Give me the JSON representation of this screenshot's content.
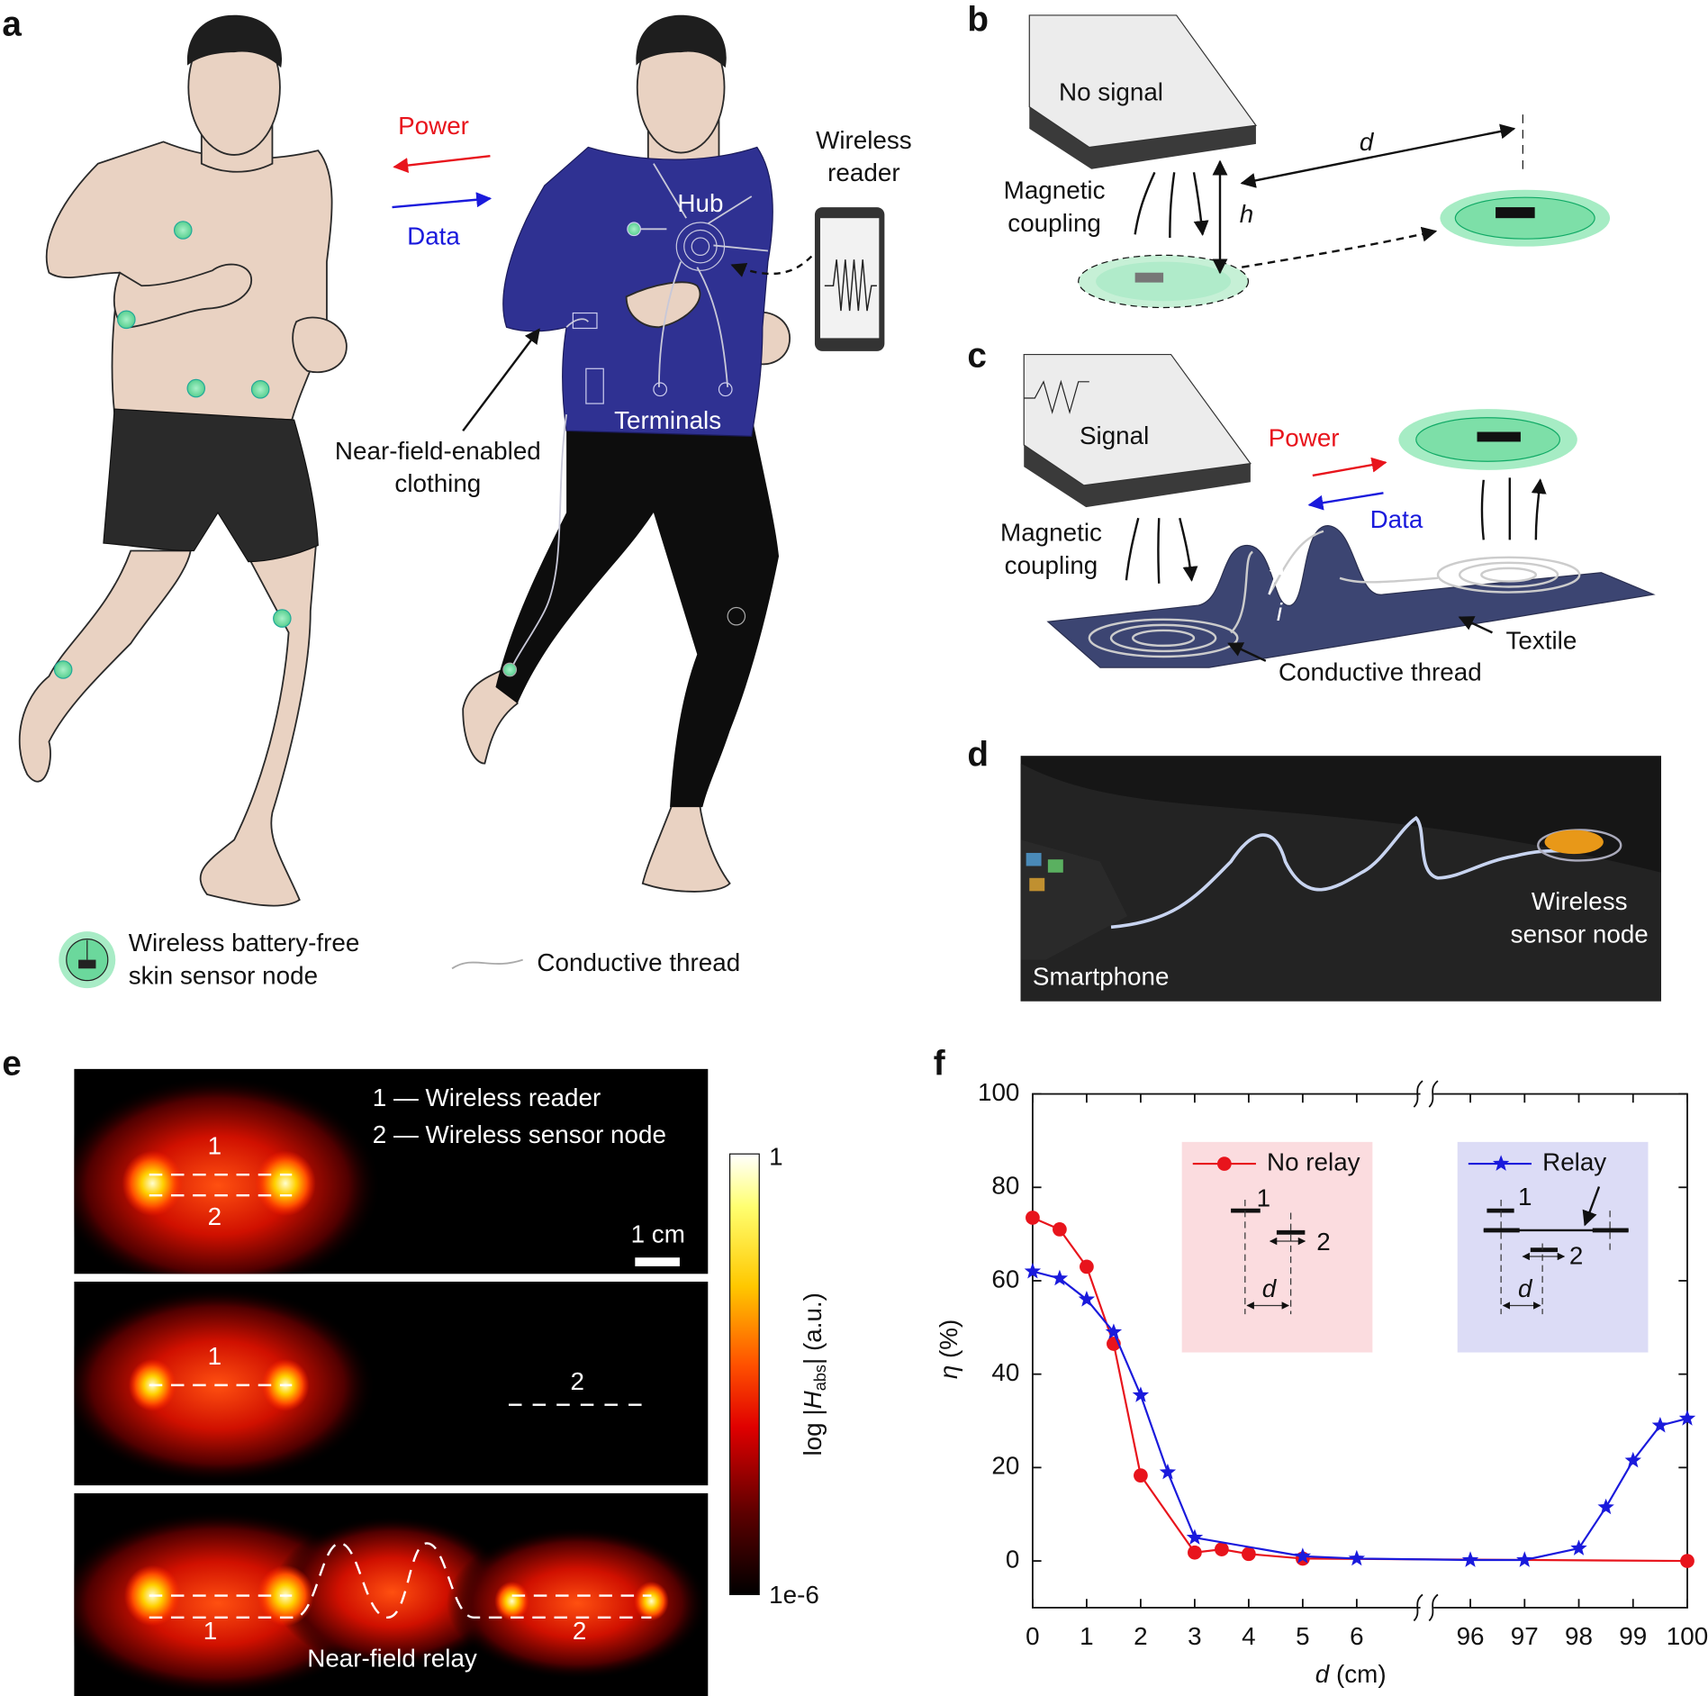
{
  "panels": {
    "a": {
      "label": "a",
      "power": "Power",
      "data": "Data",
      "reader": [
        "Wireless",
        "reader"
      ],
      "hub": "Hub",
      "terminals": "Terminals",
      "clothing": [
        "Near-field-enabled",
        "clothing"
      ],
      "legend_node": [
        "Wireless battery-free",
        "skin sensor node"
      ],
      "legend_thread": "Conductive thread"
    },
    "b": {
      "label": "b",
      "phone": "No signal",
      "coupling": [
        "Magnetic",
        "coupling"
      ],
      "h": "h",
      "d": "d"
    },
    "c": {
      "label": "c",
      "phone": "Signal",
      "power": "Power",
      "data": "Data",
      "coupling": [
        "Magnetic",
        "coupling"
      ],
      "current": "i",
      "textile": "Textile",
      "thread": "Conductive thread"
    },
    "d": {
      "label": "d",
      "smartphone": "Smartphone",
      "node": [
        "Wireless",
        "sensor node"
      ]
    },
    "e": {
      "label": "e",
      "key": [
        "1 — Wireless reader",
        "2 — Wireless sensor node"
      ],
      "scale": "1 cm",
      "relay": "Near-field relay",
      "coil1": "1",
      "coil2": "2",
      "colorbar": {
        "max": "1",
        "min": "1e-6",
        "label": [
          "log |",
          "H",
          "abs",
          "| (a.u.)"
        ]
      }
    },
    "f": {
      "label": "f",
      "insets": [
        {
          "coil1": "1",
          "coil2": "2",
          "d": "d"
        },
        {
          "coil1": "1",
          "coil2": "2",
          "d": "d"
        }
      ]
    }
  },
  "chart_data": {
    "type": "line",
    "xlabel": [
      "d",
      " (cm)"
    ],
    "ylabel": [
      "η",
      " (%)"
    ],
    "xsegments": [
      {
        "xlim": [
          0,
          7.3
        ],
        "xticks": [
          0,
          1,
          2,
          3,
          4,
          5,
          6
        ]
      },
      {
        "xlim": [
          95.2,
          100
        ],
        "xticks": [
          96,
          97,
          98,
          99,
          100
        ]
      }
    ],
    "ylim": [
      -10,
      100
    ],
    "yticks": [
      0,
      20,
      40,
      60,
      80,
      100
    ],
    "series": [
      {
        "name": "No relay",
        "color": "#e8141c",
        "marker": "circle",
        "x": [
          0,
          0.5,
          1,
          1.5,
          2,
          3,
          3.5,
          4,
          5,
          100
        ],
        "values": [
          73.5,
          71,
          63,
          46.5,
          18.3,
          1.8,
          2.5,
          1.5,
          0.5,
          0
        ]
      },
      {
        "name": "Relay",
        "color": "#1a1adc",
        "marker": "star",
        "x": [
          0,
          0.5,
          1,
          1.5,
          2,
          2.5,
          3,
          5,
          6,
          96,
          97,
          98,
          98.5,
          99,
          99.5,
          100
        ],
        "values": [
          62,
          60.5,
          56,
          49,
          35.5,
          19,
          5,
          1,
          0.5,
          0.2,
          0.2,
          2.7,
          11.5,
          21.5,
          29,
          30.5
        ]
      }
    ]
  }
}
